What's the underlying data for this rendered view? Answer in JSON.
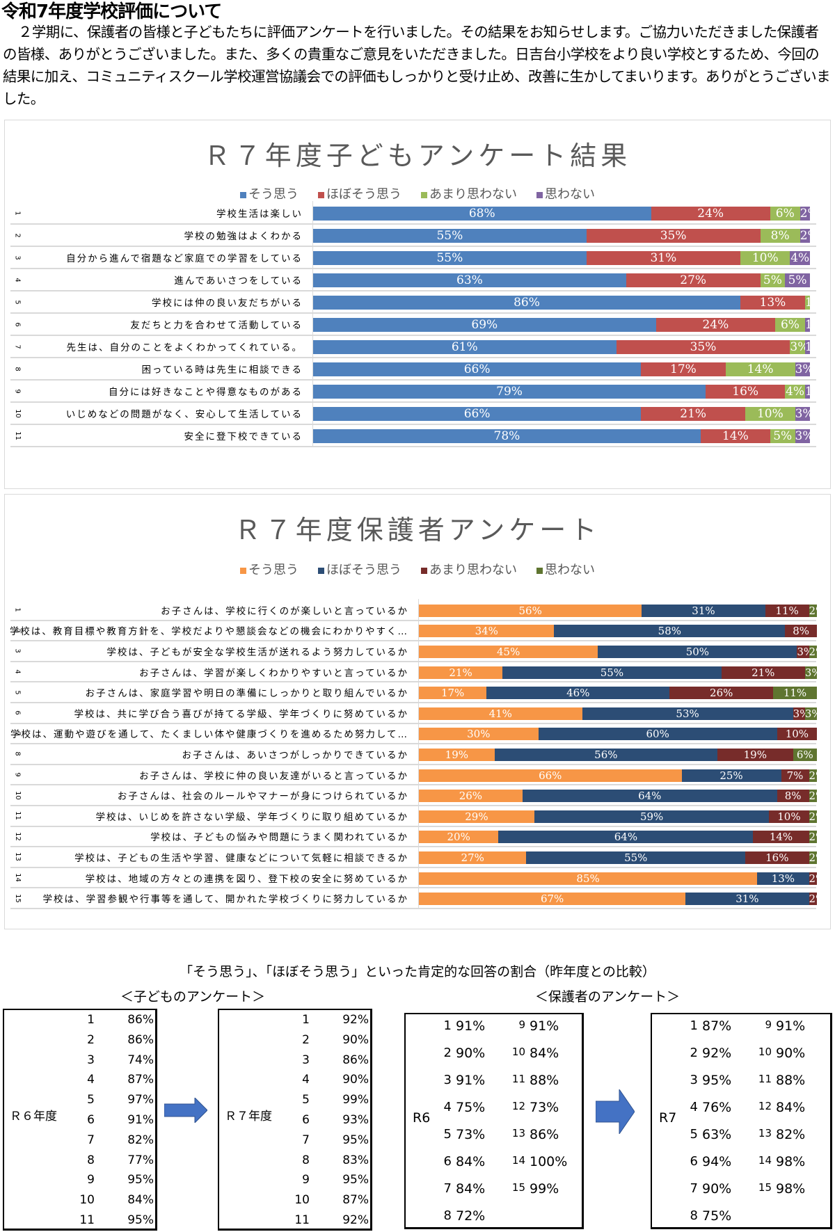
{
  "title": "令和7年度学校評価について",
  "intro": "２学期に、保護者の皆様と子どもたちに評価アンケートを行いました。その結果をお知らせします。ご協力いただきました保護者の皆様、ありがとうございました。また、多くの貴重なご意見をいただきました。日吉台小学校をより良い学校とするため、今回の結果に加え、コミュニティスクール学校運営協議会での評価もしっかりと受け止め、改善に生かしてまいります。ありがとうございました。",
  "chart_data": [
    {
      "type": "bar",
      "stacked": true,
      "orientation": "horizontal",
      "title": "Ｒ７年度子どもアンケート結果",
      "legend_position": "top",
      "series": [
        {
          "name": "そう思う",
          "color": "#4F81BD"
        },
        {
          "name": "ほぼそう思う",
          "color": "#C0504D"
        },
        {
          "name": "あまり思わない",
          "color": "#9BBB59"
        },
        {
          "name": "思わない",
          "color": "#8064A2"
        }
      ],
      "categories": [
        {
          "num": "1",
          "label": "学校生活は楽しい",
          "values": [
            68,
            24,
            6,
            2
          ]
        },
        {
          "num": "2",
          "label": "学校の勉強はよくわかる",
          "values": [
            55,
            35,
            8,
            2
          ]
        },
        {
          "num": "3",
          "label": "自分から進んで宿題など家庭での学習をしている",
          "values": [
            55,
            31,
            10,
            4
          ]
        },
        {
          "num": "4",
          "label": "進んであいさつをしている",
          "values": [
            63,
            27,
            5,
            5
          ]
        },
        {
          "num": "5",
          "label": "学校には仲の良い友だちがいる",
          "values": [
            86,
            13,
            1,
            0
          ]
        },
        {
          "num": "6",
          "label": "友だちと力を合わせて活動している",
          "values": [
            69,
            24,
            6,
            1
          ]
        },
        {
          "num": "7",
          "label": "先生は、自分のことをよくわかってくれている。",
          "values": [
            61,
            35,
            3,
            1
          ]
        },
        {
          "num": "8",
          "label": "困っている時は先生に相談できる",
          "values": [
            66,
            17,
            14,
            3
          ]
        },
        {
          "num": "9",
          "label": "自分には好きなことや得意なものがある",
          "values": [
            79,
            16,
            4,
            1
          ]
        },
        {
          "num": "10",
          "label": "いじめなどの問題がなく、安心して生活している",
          "values": [
            66,
            21,
            10,
            3
          ]
        },
        {
          "num": "11",
          "label": "安全に登下校できている",
          "values": [
            78,
            14,
            5,
            3
          ]
        }
      ]
    },
    {
      "type": "bar",
      "stacked": true,
      "orientation": "horizontal",
      "title": "Ｒ７年度保護者アンケート",
      "legend_position": "top",
      "series": [
        {
          "name": "そう思う",
          "color": "#F79646"
        },
        {
          "name": "ほぼそう思う",
          "color": "#2C4D75"
        },
        {
          "name": "あまり思わない",
          "color": "#772C2A"
        },
        {
          "name": "思わない",
          "color": "#5F7530"
        }
      ],
      "categories": [
        {
          "num": "1",
          "label": "お子さんは、学校に行くのが楽しいと言っているか",
          "values": [
            56,
            31,
            11,
            2
          ]
        },
        {
          "num": "2",
          "label": "学校は、教育目標や教育方針を、学校だよりや懇談会などの機会にわかりやすく…",
          "values": [
            34,
            58,
            8,
            0
          ]
        },
        {
          "num": "3",
          "label": "学校は、子どもが安全な学校生活が送れるよう努力しているか",
          "values": [
            45,
            50,
            3,
            2
          ]
        },
        {
          "num": "4",
          "label": "お子さんは、学習が楽しくわかりやすいと言っているか",
          "values": [
            21,
            55,
            21,
            3
          ]
        },
        {
          "num": "5",
          "label": "お子さんは、家庭学習や明日の準備にしっかりと取り組んでいるか",
          "values": [
            17,
            46,
            26,
            11
          ]
        },
        {
          "num": "6",
          "label": "学校は、共に学び合う喜びが持てる学級、学年づくりに努めているか",
          "values": [
            41,
            53,
            3,
            3
          ]
        },
        {
          "num": "7",
          "label": "学校は、運動や遊びを通して、たくましい体や健康づくりを進めるため努力して…",
          "values": [
            30,
            60,
            10,
            0
          ]
        },
        {
          "num": "8",
          "label": "お子さんは、あいさつがしっかりできているか",
          "values": [
            19,
            56,
            19,
            6
          ]
        },
        {
          "num": "9",
          "label": "お子さんは、学校に仲の良い友達がいると言っているか",
          "values": [
            66,
            25,
            7,
            2
          ]
        },
        {
          "num": "10",
          "label": "お子さんは、社会のルールやマナーが身につけられているか",
          "values": [
            26,
            64,
            8,
            2
          ]
        },
        {
          "num": "11",
          "label": "学校は、いじめを許さない学級、学年づくりに取り組めているか",
          "values": [
            29,
            59,
            10,
            2
          ]
        },
        {
          "num": "12",
          "label": "学校は、子どもの悩みや問題にうまく関われているか",
          "values": [
            20,
            64,
            14,
            2
          ]
        },
        {
          "num": "13",
          "label": "学校は、子どもの生活や学習、健康などについて気軽に相談できるか",
          "values": [
            27,
            55,
            16,
            2
          ]
        },
        {
          "num": "14",
          "label": "学校は、地域の方々との連携を図り、登下校の安全に努めているか",
          "values": [
            85,
            13,
            2,
            0
          ]
        },
        {
          "num": "15",
          "label": "学校は、学習参観や行事等を通して、開かれた学校づくりに努力しているか",
          "values": [
            67,
            31,
            2,
            0
          ]
        }
      ]
    }
  ],
  "comparison": {
    "title": "「そう思う」、「ほぼそう思う」といった肯定的な回答の割合（昨年度との比較）",
    "children_heading": "＜子どものアンケート＞",
    "parents_heading": "＜保護者のアンケート＞",
    "children_r6": {
      "label": "Ｒ６年度",
      "rows": [
        [
          "1",
          "86%"
        ],
        [
          "2",
          "86%"
        ],
        [
          "3",
          "74%"
        ],
        [
          "4",
          "87%"
        ],
        [
          "5",
          "97%"
        ],
        [
          "6",
          "91%"
        ],
        [
          "7",
          "82%"
        ],
        [
          "8",
          "77%"
        ],
        [
          "9",
          "95%"
        ],
        [
          "10",
          "84%"
        ],
        [
          "11",
          "95%"
        ]
      ]
    },
    "children_r7": {
      "label": "Ｒ７年度",
      "rows": [
        [
          "1",
          "92%"
        ],
        [
          "2",
          "90%"
        ],
        [
          "3",
          "86%"
        ],
        [
          "4",
          "90%"
        ],
        [
          "5",
          "99%"
        ],
        [
          "6",
          "93%"
        ],
        [
          "7",
          "95%"
        ],
        [
          "8",
          "83%"
        ],
        [
          "9",
          "95%"
        ],
        [
          "10",
          "87%"
        ],
        [
          "11",
          "92%"
        ]
      ]
    },
    "parents_r6": {
      "label": "R6",
      "rows": [
        [
          "1",
          "91%"
        ],
        [
          "2",
          "90%"
        ],
        [
          "3",
          "91%"
        ],
        [
          "4",
          "75%"
        ],
        [
          "5",
          "73%"
        ],
        [
          "6",
          "84%"
        ],
        [
          "7",
          "84%"
        ],
        [
          "8",
          "72%"
        ],
        [
          "9",
          "91%"
        ],
        [
          "10",
          "84%"
        ],
        [
          "11",
          "88%"
        ],
        [
          "12",
          "73%"
        ],
        [
          "13",
          "86%"
        ],
        [
          "14",
          "100%"
        ],
        [
          "15",
          "99%"
        ]
      ]
    },
    "parents_r7": {
      "label": "R7",
      "rows": [
        [
          "1",
          "87%"
        ],
        [
          "2",
          "92%"
        ],
        [
          "3",
          "95%"
        ],
        [
          "4",
          "76%"
        ],
        [
          "5",
          "63%"
        ],
        [
          "6",
          "94%"
        ],
        [
          "7",
          "90%"
        ],
        [
          "8",
          "75%"
        ],
        [
          "9",
          "91%"
        ],
        [
          "10",
          "90%"
        ],
        [
          "11",
          "88%"
        ],
        [
          "12",
          "84%"
        ],
        [
          "13",
          "82%"
        ],
        [
          "14",
          "98%"
        ],
        [
          "15",
          "98%"
        ]
      ]
    }
  }
}
